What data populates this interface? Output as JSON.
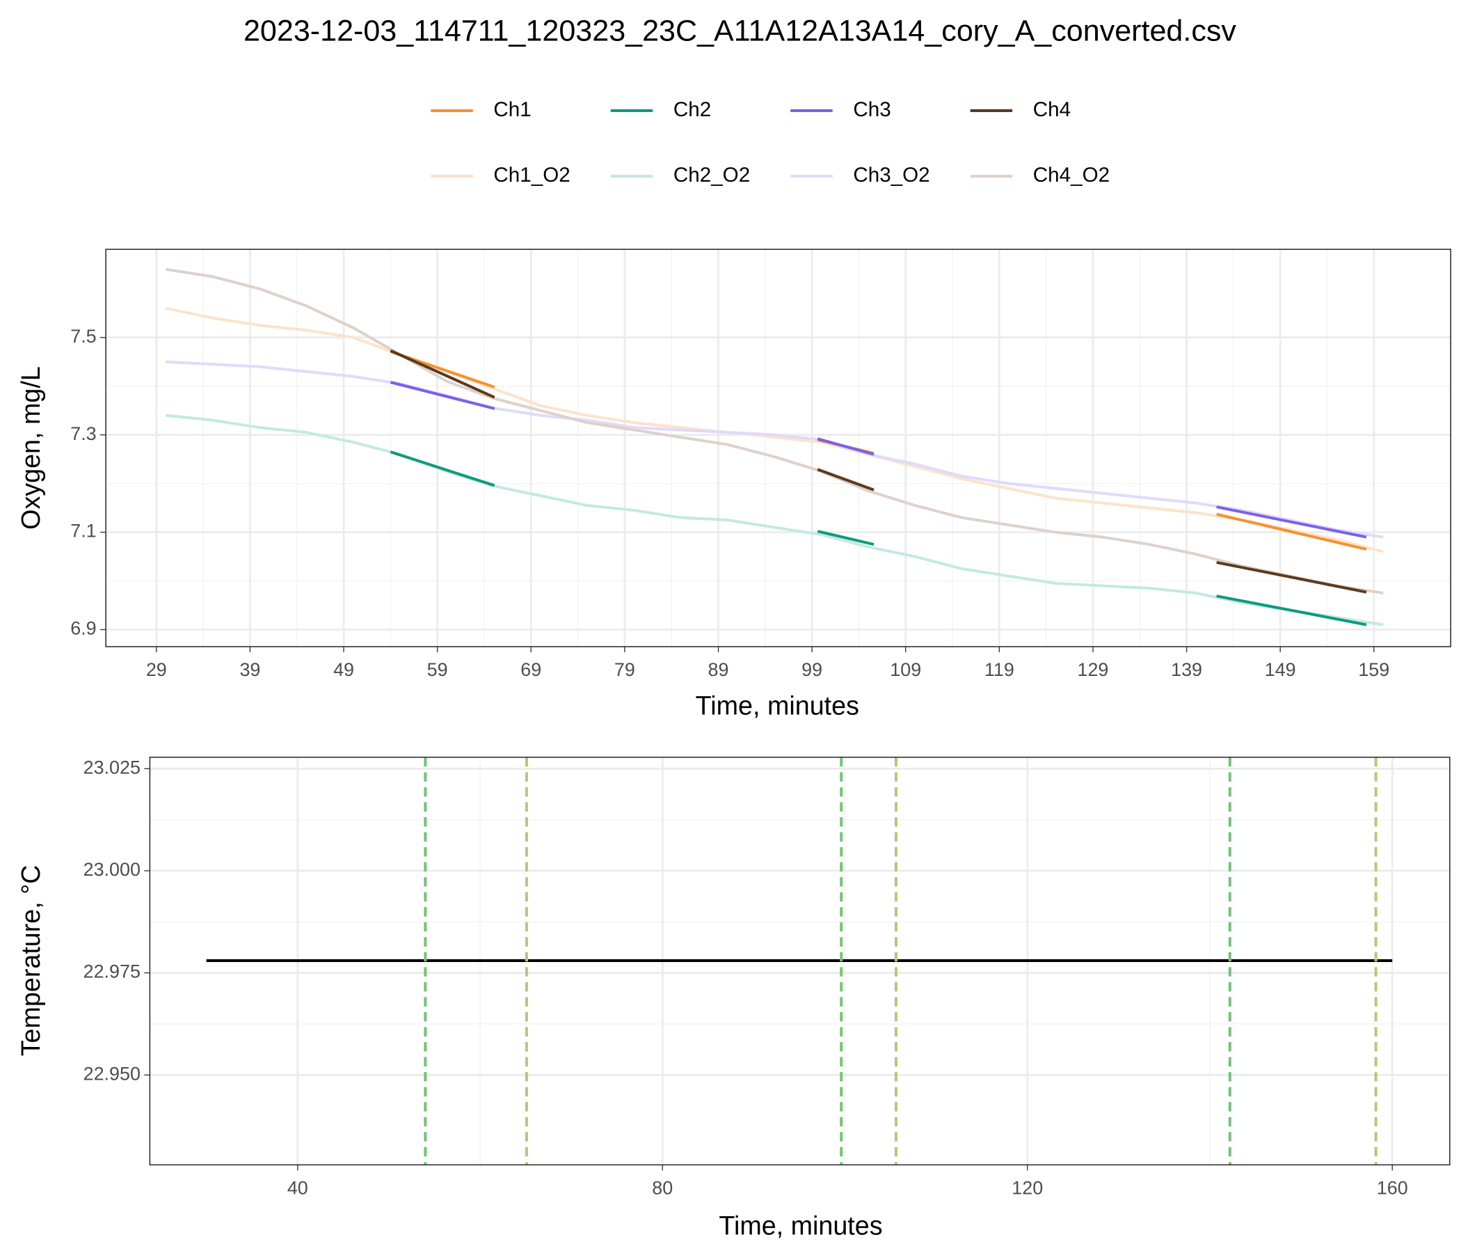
{
  "chart_data": [
    {
      "type": "line",
      "title": "2023-12-03_114711_120323_23C_A11A12A13A14_cory_A_converted.csv",
      "x_label": "Time, minutes",
      "y_label": "Oxygen, mg/L",
      "xlim": [
        23.6,
        167.2
      ],
      "ylim": [
        6.865,
        7.681
      ],
      "xticks": [
        29,
        39,
        49,
        59,
        69,
        79,
        89,
        99,
        109,
        119,
        129,
        139,
        149,
        159
      ],
      "yticks": [
        6.9,
        7.1,
        7.3,
        7.5
      ],
      "grid": true,
      "x": [
        30,
        35,
        40,
        45,
        50,
        55,
        60,
        65,
        70,
        75,
        80,
        85,
        90,
        95,
        100,
        105,
        110,
        115,
        120,
        125,
        130,
        135,
        140,
        145,
        150,
        155,
        160
      ],
      "series": [
        {
          "name": "Ch1",
          "color": "#f5922f",
          "x": [
            54,
            65.1,
            null,
            99.6,
            105.6,
            null,
            142.2,
            158.2
          ],
          "values": [
            7.471,
            7.398,
            null,
            7.29,
            7.262,
            null,
            7.137,
            7.065
          ]
        },
        {
          "name": "Ch2",
          "color": "#0f9b7f",
          "x": [
            54,
            65.1,
            null,
            99.6,
            105.6,
            null,
            142.2,
            158.2
          ],
          "values": [
            7.265,
            7.196,
            null,
            7.102,
            7.075,
            null,
            6.969,
            6.91
          ]
        },
        {
          "name": "Ch3",
          "color": "#7b61e8",
          "x": [
            54,
            65.1,
            null,
            99.6,
            105.6,
            null,
            142.2,
            158.2
          ],
          "values": [
            7.408,
            7.354,
            null,
            7.292,
            7.26,
            null,
            7.152,
            7.09
          ]
        },
        {
          "name": "Ch4",
          "color": "#5c3a1e",
          "x": [
            54,
            65.1,
            null,
            99.6,
            105.6,
            null,
            142.2,
            158.2
          ],
          "values": [
            7.473,
            7.377,
            null,
            7.229,
            7.187,
            null,
            7.038,
            6.977
          ]
        },
        {
          "name": "Ch1_O2",
          "color": "#fde3cc",
          "values": [
            7.56,
            7.54,
            7.525,
            7.515,
            7.5,
            7.465,
            7.43,
            7.395,
            7.36,
            7.34,
            7.325,
            7.315,
            7.305,
            7.295,
            7.285,
            7.26,
            7.235,
            7.21,
            7.19,
            7.17,
            7.16,
            7.15,
            7.14,
            7.125,
            7.105,
            7.085,
            7.06
          ]
        },
        {
          "name": "Ch2_O2",
          "color": "#c4e9e1",
          "values": [
            7.34,
            7.33,
            7.315,
            7.305,
            7.285,
            7.26,
            7.225,
            7.195,
            7.175,
            7.155,
            7.145,
            7.13,
            7.125,
            7.11,
            7.095,
            7.07,
            7.05,
            7.025,
            7.01,
            6.995,
            6.99,
            6.985,
            6.975,
            6.955,
            6.94,
            6.925,
            6.91
          ]
        },
        {
          "name": "Ch3_O2",
          "color": "#e0dafb",
          "values": [
            7.45,
            7.445,
            7.44,
            7.43,
            7.42,
            7.405,
            7.38,
            7.355,
            7.34,
            7.33,
            7.315,
            7.31,
            7.305,
            7.3,
            7.29,
            7.26,
            7.24,
            7.215,
            7.2,
            7.19,
            7.18,
            7.17,
            7.16,
            7.145,
            7.125,
            7.105,
            7.09
          ]
        },
        {
          "name": "Ch4_O2",
          "color": "#ddd2ca",
          "values": [
            7.64,
            7.625,
            7.6,
            7.565,
            7.52,
            7.465,
            7.41,
            7.375,
            7.35,
            7.325,
            7.31,
            7.295,
            7.28,
            7.255,
            7.225,
            7.185,
            7.155,
            7.13,
            7.115,
            7.1,
            7.09,
            7.075,
            7.055,
            7.03,
            7.01,
            6.99,
            6.975
          ]
        }
      ]
    },
    {
      "type": "line",
      "x_label": "Time, minutes",
      "y_label": "Temperature, °C",
      "xlim": [
        23.8,
        166.3
      ],
      "ylim": [
        22.928,
        23.0278
      ],
      "xticks": [
        40,
        80,
        120,
        160
      ],
      "yticks": [
        {
          "value": 22.95,
          "label": "22.950"
        },
        22.975,
        {
          "value": 23,
          "label": "23.000"
        },
        23.025
      ],
      "grid": true,
      "x": [
        30,
        160
      ],
      "series": [
        {
          "color": "#000000",
          "values": [
            22.978,
            22.978
          ]
        }
      ],
      "markers": [
        {
          "x": 54,
          "color": "#74c476"
        },
        {
          "x": 65.1,
          "color": "#c2c277"
        },
        {
          "x": 99.6,
          "color": "#74c476"
        },
        {
          "x": 105.6,
          "color": "#c2c277"
        },
        {
          "x": 142.2,
          "color": "#74c476"
        },
        {
          "x": 158.2,
          "color": "#c2c277"
        }
      ]
    }
  ]
}
